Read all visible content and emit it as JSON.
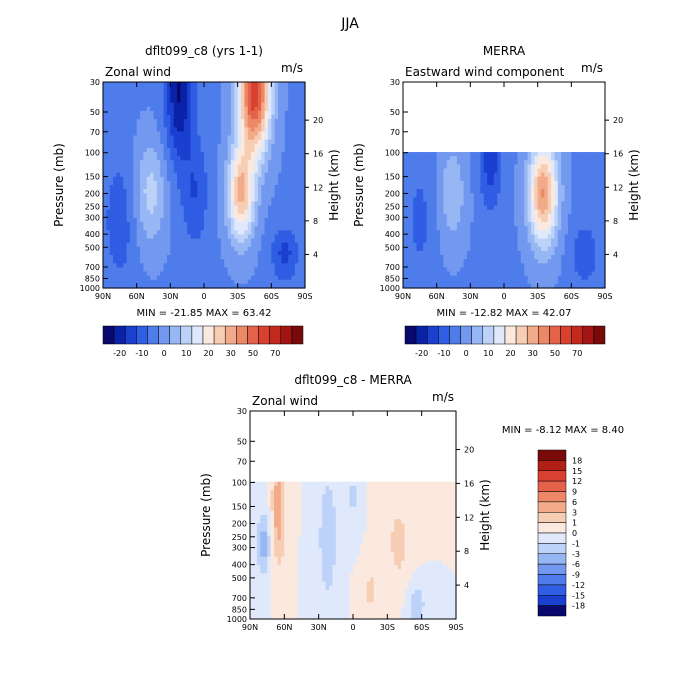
{
  "figure": {
    "title": "JJA"
  },
  "units": "m/s",
  "x_tick_labels": [
    "90N",
    "60N",
    "30N",
    "0",
    "30S",
    "60S",
    "90S"
  ],
  "pressure_ticks": [
    "30",
    "50",
    "70",
    "100",
    "150",
    "200",
    "250",
    "300",
    "400",
    "500",
    "700",
    "850",
    "1000"
  ],
  "height_ticks": [
    "4",
    "8",
    "12",
    "16",
    "20"
  ],
  "ylabel_left": "Pressure (mb)",
  "ylabel_right": "Height (km)",
  "panels": [
    {
      "id": "model",
      "title": "dflt099_c8 (yrs 1-1)",
      "var_label": "Zonal wind",
      "units": "m/s",
      "min_label": "MIN = ",
      "min_value": "-21.85",
      "max_label": "MAX = ",
      "max_value": "63.42"
    },
    {
      "id": "merra",
      "title": "MERRA",
      "var_label": "Eastward wind component",
      "units": "m/s",
      "min_label": "MIN = ",
      "min_value": "-12.82",
      "max_label": "MAX = ",
      "max_value": "42.07"
    },
    {
      "id": "diff",
      "title": "dflt099_c8 - MERRA",
      "var_label": "Zonal wind",
      "units": "m/s",
      "min_label": "MIN = ",
      "min_value": "-8.12",
      "max_label": "MAX = ",
      "max_value": "8.40"
    }
  ],
  "colorbar_main": {
    "labels": [
      "-20",
      "-10",
      "0",
      "10",
      "20",
      "30",
      "50",
      "70"
    ],
    "colors": [
      "#08086e",
      "#0a22a8",
      "#1b3fcf",
      "#2f5de3",
      "#4f7ceb",
      "#7298ef",
      "#97b6f4",
      "#bcd2f8",
      "#dfe9fb",
      "#fbe9df",
      "#f7cdb4",
      "#f2ab8a",
      "#ec8866",
      "#e4624a",
      "#d8402f",
      "#c4291d",
      "#a31513",
      "#7a0a0a"
    ]
  },
  "colorbar_diff": {
    "labels": [
      "18",
      "15",
      "12",
      "9",
      "6",
      "3",
      "1",
      "0",
      "-1",
      "-3",
      "-6",
      "-9",
      "-12",
      "-15",
      "-18"
    ],
    "colors": [
      "#7a0a0a",
      "#b01e14",
      "#d8402f",
      "#e4624a",
      "#ec8866",
      "#f2ab8a",
      "#f7cdb4",
      "#fbe9df",
      "#dfe9fb",
      "#bcd2f8",
      "#97b6f4",
      "#7298ef",
      "#4f7ceb",
      "#2f5de3",
      "#1b3fcf",
      "#08086e"
    ]
  },
  "chart_data": [
    {
      "type": "heatmap",
      "title": "dflt099_c8 (yrs 1-1)",
      "variable": "Zonal wind",
      "units": "m/s",
      "x": [
        "90N",
        "60N",
        "30N",
        "0",
        "30S",
        "60S",
        "90S"
      ],
      "y_pressure_mb": [
        30,
        50,
        70,
        100,
        150,
        200,
        250,
        300,
        400,
        500,
        700,
        850,
        1000
      ],
      "xlabel": "",
      "ylabel": "Pressure (mb)",
      "ylabel_right": "Height (km)",
      "min": -21.85,
      "max": 63.42,
      "features": [
        {
          "lat": 50,
          "p_mb": 200,
          "value": 15
        },
        {
          "lat": 20,
          "p_mb": 40,
          "value": -20
        },
        {
          "lat": -45,
          "p_mb": 40,
          "value": 60
        },
        {
          "lat": -35,
          "p_mb": 200,
          "value": 45
        }
      ]
    },
    {
      "type": "heatmap",
      "title": "MERRA",
      "variable": "Eastward wind component",
      "units": "m/s",
      "x": [
        "90N",
        "60N",
        "30N",
        "0",
        "30S",
        "60S",
        "90S"
      ],
      "y_pressure_mb": [
        30,
        50,
        70,
        100,
        150,
        200,
        250,
        300,
        400,
        500,
        700,
        850,
        1000
      ],
      "data_top_mb": 100,
      "xlabel": "",
      "ylabel": "Pressure (mb)",
      "ylabel_right": "Height (km)",
      "min": -12.82,
      "max": 42.07,
      "features": [
        {
          "lat": 45,
          "p_mb": 200,
          "value": 12
        },
        {
          "lat": 10,
          "p_mb": 120,
          "value": -12
        },
        {
          "lat": -35,
          "p_mb": 200,
          "value": 40
        }
      ]
    },
    {
      "type": "heatmap",
      "title": "dflt099_c8 - MERRA",
      "variable": "Zonal wind",
      "units": "m/s",
      "x": [
        "90N",
        "60N",
        "30N",
        "0",
        "30S",
        "60S",
        "90S"
      ],
      "y_pressure_mb": [
        30,
        50,
        70,
        100,
        150,
        200,
        250,
        300,
        400,
        500,
        700,
        850,
        1000
      ],
      "data_top_mb": 100,
      "xlabel": "",
      "ylabel": "Pressure (mb)",
      "ylabel_right": "Height (km)",
      "min": -8.12,
      "max": 8.4,
      "features": [
        {
          "lat": 65,
          "p_mb": 150,
          "value": 6
        },
        {
          "lat": 75,
          "p_mb": 300,
          "value": -6
        },
        {
          "lat": 20,
          "p_mb": 250,
          "value": -5
        },
        {
          "lat": -40,
          "p_mb": 250,
          "value": 3
        }
      ]
    }
  ]
}
